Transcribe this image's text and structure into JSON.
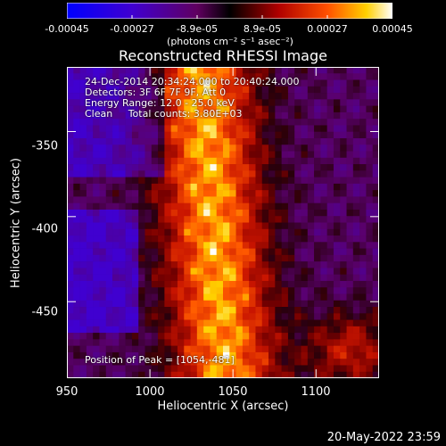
{
  "colorbar": {
    "ticks": [
      "-0.00045",
      "-0.00027",
      "-8.9e-05",
      "8.9e-05",
      "0.00027",
      "0.00045"
    ],
    "units": "(photons cm⁻² s⁻¹ asec⁻²)"
  },
  "chart_data": {
    "type": "heatmap",
    "title": "Reconstructed RHESSI Image",
    "xlabel": "Heliocentric X (arcsec)",
    "ylabel": "Heliocentric Y (arcsec)",
    "xlim": [
      950,
      1138
    ],
    "ylim": [
      -495,
      -312
    ],
    "x_ticks": [
      "950",
      "1000",
      "1050",
      "1100"
    ],
    "y_ticks": [
      "-350",
      "-400",
      "-450"
    ],
    "color_range": [
      -0.00045,
      0.00045
    ],
    "peak": [
      1054,
      -481
    ]
  },
  "annotations": {
    "time_range": "24-Dec-2014 20:34:24.000 to 20:40:24.000",
    "detectors": "Detectors: 3F 6F 7F 9F, Att 0",
    "energy": "Energy Range: 12.0 - 25.0 keV",
    "clean": "Clean     Total counts: 3.80E+03",
    "peak_position": "Position of Peak = [1054,-481]"
  },
  "footer": {
    "date": "20-May-2022 23:59"
  }
}
